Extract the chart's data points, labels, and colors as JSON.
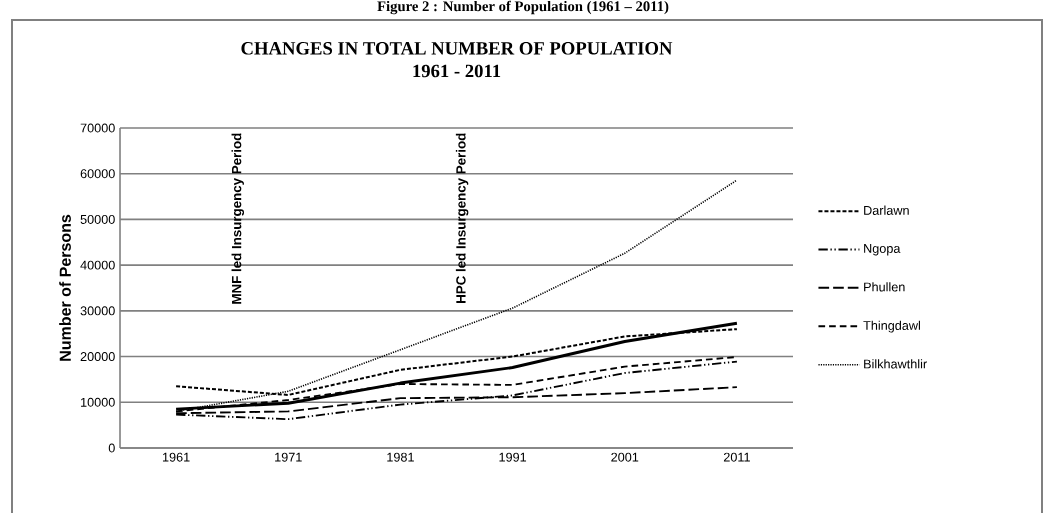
{
  "chart_data": {
    "type": "line",
    "title": "CHANGES IN TOTAL NUMBER OF POPULATION",
    "subtitle": "1961 - 2011",
    "ylabel": "Number of Persons",
    "annotations": [
      "Figure 2 : Number of Population (1961 – 2011)",
      "MNF led Insurgency Period",
      "HPC led Insurgency Period"
    ],
    "categories": [
      "1961",
      "1971",
      "1981",
      "1991",
      "2001",
      "2011"
    ],
    "ylim": [
      0,
      70000
    ],
    "yticks": [
      0,
      10000,
      20000,
      30000,
      40000,
      50000,
      60000,
      70000
    ],
    "grid": "y",
    "legend": "right",
    "series": [
      {
        "name": "Darlawn",
        "color": "#000000",
        "line_style": "dashed",
        "values": [
          13500,
          11600,
          17100,
          20000,
          24400,
          26000
        ]
      },
      {
        "name": "Ngopa",
        "color": "#000000",
        "line_style": "dashdotdot",
        "values": [
          7300,
          6300,
          9500,
          11500,
          16400,
          18900
        ]
      },
      {
        "name": "Phullen",
        "color": "#000000",
        "line_style": "longdashed",
        "values": [
          7600,
          8000,
          10900,
          11100,
          12000,
          13300
        ]
      },
      {
        "name": "Thingdawl",
        "color": "#000000",
        "line_style": "mediumdashed",
        "values": [
          8000,
          10500,
          14000,
          13800,
          17800,
          19900
        ]
      },
      {
        "name": "Bilkhawthlir",
        "color": "#000000",
        "line_style": "dotted",
        "values": [
          8000,
          12400,
          21500,
          30600,
          42600,
          58600
        ]
      },
      {
        "color": "#000000",
        "line_style": "solid",
        "values": [
          8500,
          9800,
          14200,
          17600,
          23300,
          27300
        ]
      }
    ]
  }
}
